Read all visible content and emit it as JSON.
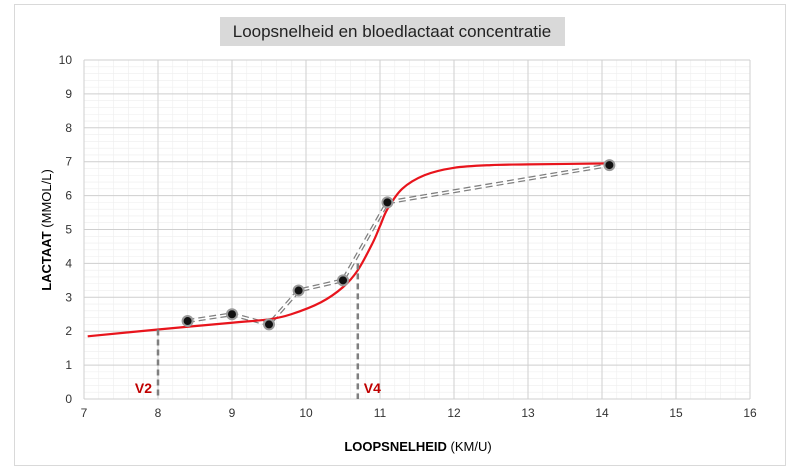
{
  "chart_data": {
    "type": "line",
    "title": "Loopsnelheid en bloedlactaat concentratie",
    "xlabel_bold": "LOOPSNELHEID",
    "xlabel_unit": " (KM/U)",
    "ylabel_bold": "LACTAAT",
    "ylabel_unit": " (MMOL/L)",
    "xlim": [
      7,
      16
    ],
    "ylim": [
      0,
      10
    ],
    "x_ticks": [
      "7",
      "8",
      "9",
      "10",
      "11",
      "12",
      "13",
      "14",
      "15",
      "16"
    ],
    "y_ticks": [
      "0",
      "1",
      "2",
      "3",
      "4",
      "5",
      "6",
      "7",
      "8",
      "9",
      "10"
    ],
    "grid": true,
    "series": [
      {
        "kind": "measured-points",
        "x": [
          8.4,
          9.0,
          9.5,
          9.9,
          10.5,
          11.1,
          14.1
        ],
        "y": [
          2.3,
          2.5,
          2.2,
          3.2,
          3.5,
          5.8,
          6.9
        ]
      },
      {
        "kind": "fitted-curve",
        "x": [
          7.05,
          8.0,
          9.0,
          9.5,
          9.8,
          10.2,
          10.5,
          10.7,
          10.9,
          11.0,
          11.1,
          11.3,
          11.6,
          12.0,
          12.5,
          13.0,
          14.1
        ],
        "y": [
          1.85,
          2.05,
          2.25,
          2.35,
          2.5,
          2.85,
          3.3,
          3.8,
          4.6,
          5.1,
          5.6,
          6.2,
          6.6,
          6.82,
          6.9,
          6.92,
          6.95
        ]
      }
    ],
    "markers": [
      {
        "label": "V2",
        "x": 8.0,
        "y": 2.05
      },
      {
        "label": "V4",
        "x": 10.7,
        "y": 4.0
      }
    ],
    "colors": {
      "curve": "#e8141c",
      "dashed": "#7f7f7f",
      "points": "#111111",
      "marker_label": "#c00000",
      "title_bg": "#d9d9d9"
    }
  }
}
